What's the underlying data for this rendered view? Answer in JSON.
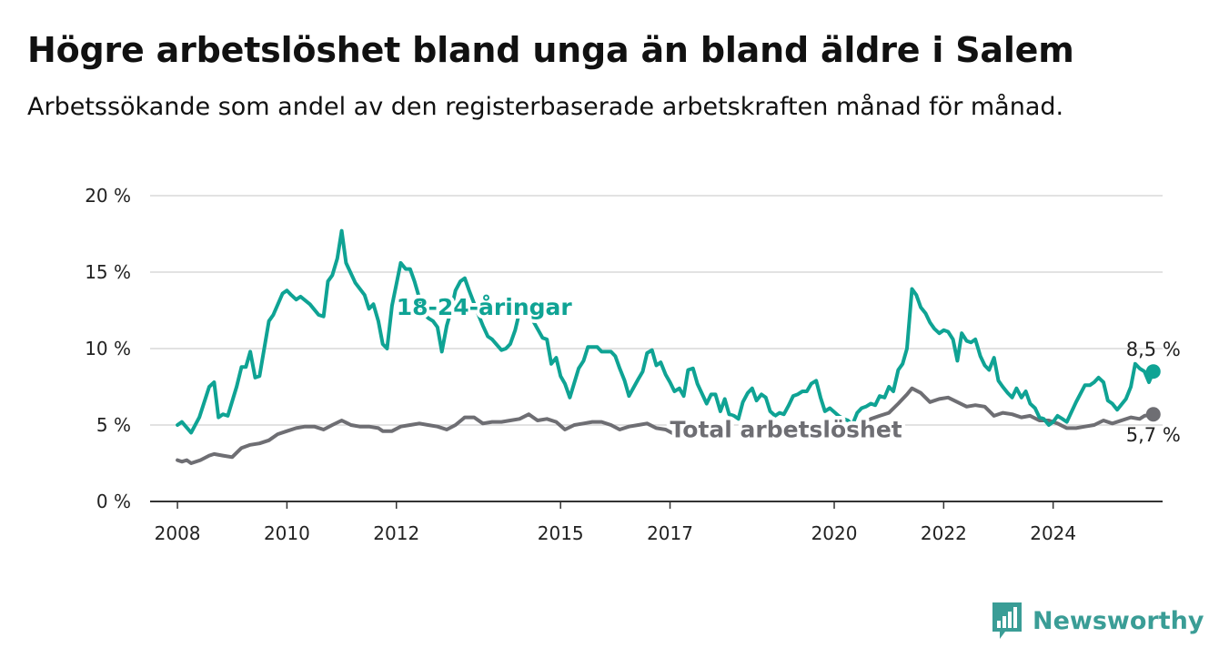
{
  "title": "Högre arbetslöshet bland unga än bland äldre i Salem",
  "subtitle": "Arbetssökande som andel av den registerbaserade arbetskraften månad för månad.",
  "logo": {
    "text": "Newsworthy",
    "icon": "newsworthy-bar-chart-icon",
    "color": "#3a9d96"
  },
  "chart_data": {
    "type": "line",
    "ylim": [
      0,
      20
    ],
    "y_ticks": [
      0,
      5,
      10,
      15,
      20
    ],
    "y_tick_labels": [
      "0 %",
      "5 %",
      "10 %",
      "15 %",
      "20 %"
    ],
    "x_ticks": [
      2008,
      2010,
      2012,
      2015,
      2017,
      2020,
      2022,
      2024
    ],
    "x_tick_labels": [
      "2008",
      "2010",
      "2012",
      "2015",
      "2017",
      "2020",
      "2022",
      "2024"
    ],
    "grid": true,
    "series": [
      {
        "name": "18-24-åringar",
        "color": "#0fa394",
        "end_label": "8,5 %",
        "points": [
          [
            2008.0,
            5.0
          ],
          [
            2008.08,
            5.2
          ],
          [
            2008.25,
            4.5
          ],
          [
            2008.4,
            5.5
          ],
          [
            2008.58,
            7.5
          ],
          [
            2008.67,
            7.8
          ],
          [
            2008.75,
            5.5
          ],
          [
            2008.83,
            5.7
          ],
          [
            2008.92,
            5.6
          ],
          [
            2009.08,
            7.5
          ],
          [
            2009.17,
            8.8
          ],
          [
            2009.25,
            8.8
          ],
          [
            2009.33,
            9.8
          ],
          [
            2009.42,
            8.1
          ],
          [
            2009.5,
            8.2
          ],
          [
            2009.67,
            11.8
          ],
          [
            2009.75,
            12.2
          ],
          [
            2009.92,
            13.6
          ],
          [
            2010.0,
            13.8
          ],
          [
            2010.08,
            13.5
          ],
          [
            2010.17,
            13.2
          ],
          [
            2010.25,
            13.4
          ],
          [
            2010.42,
            12.9
          ],
          [
            2010.58,
            12.2
          ],
          [
            2010.67,
            12.1
          ],
          [
            2010.75,
            14.4
          ],
          [
            2010.83,
            14.8
          ],
          [
            2010.92,
            15.9
          ],
          [
            2011.0,
            17.7
          ],
          [
            2011.08,
            15.6
          ],
          [
            2011.25,
            14.3
          ],
          [
            2011.42,
            13.5
          ],
          [
            2011.5,
            12.6
          ],
          [
            2011.58,
            12.9
          ],
          [
            2011.67,
            11.8
          ],
          [
            2011.75,
            10.3
          ],
          [
            2011.83,
            10.0
          ],
          [
            2011.92,
            12.8
          ],
          [
            2012.08,
            15.6
          ],
          [
            2012.17,
            15.2
          ],
          [
            2012.25,
            15.2
          ],
          [
            2012.33,
            14.4
          ],
          [
            2012.42,
            13.3
          ],
          [
            2012.5,
            12.3
          ],
          [
            2012.58,
            12.0
          ],
          [
            2012.67,
            11.8
          ],
          [
            2012.75,
            11.4
          ],
          [
            2012.83,
            9.8
          ],
          [
            2012.92,
            11.5
          ],
          [
            2013.0,
            12.5
          ],
          [
            2013.08,
            13.8
          ],
          [
            2013.17,
            14.4
          ],
          [
            2013.25,
            14.6
          ],
          [
            2013.33,
            13.8
          ],
          [
            2013.5,
            12.2
          ],
          [
            2013.58,
            11.5
          ],
          [
            2013.67,
            10.8
          ],
          [
            2013.75,
            10.6
          ],
          [
            2013.92,
            9.9
          ],
          [
            2014.0,
            10.0
          ],
          [
            2014.08,
            10.3
          ],
          [
            2014.17,
            11.2
          ],
          [
            2014.25,
            12.4
          ],
          [
            2014.33,
            12.8
          ],
          [
            2014.5,
            11.8
          ],
          [
            2014.67,
            10.7
          ],
          [
            2014.75,
            10.6
          ],
          [
            2014.83,
            9.0
          ],
          [
            2014.92,
            9.4
          ],
          [
            2015.0,
            8.2
          ],
          [
            2015.08,
            7.7
          ],
          [
            2015.17,
            6.8
          ],
          [
            2015.33,
            8.7
          ],
          [
            2015.42,
            9.2
          ],
          [
            2015.5,
            10.1
          ],
          [
            2015.67,
            10.1
          ],
          [
            2015.75,
            9.8
          ],
          [
            2015.92,
            9.8
          ],
          [
            2016.0,
            9.5
          ],
          [
            2016.08,
            8.7
          ],
          [
            2016.17,
            7.9
          ],
          [
            2016.25,
            6.9
          ],
          [
            2016.42,
            8.0
          ],
          [
            2016.5,
            8.5
          ],
          [
            2016.58,
            9.7
          ],
          [
            2016.67,
            9.9
          ],
          [
            2016.75,
            8.9
          ],
          [
            2016.83,
            9.1
          ],
          [
            2016.92,
            8.3
          ],
          [
            2017.0,
            7.8
          ],
          [
            2017.08,
            7.2
          ],
          [
            2017.17,
            7.4
          ],
          [
            2017.25,
            6.9
          ],
          [
            2017.33,
            8.6
          ],
          [
            2017.42,
            8.7
          ],
          [
            2017.5,
            7.7
          ],
          [
            2017.67,
            6.4
          ],
          [
            2017.75,
            7.0
          ],
          [
            2017.83,
            7.0
          ],
          [
            2017.92,
            5.9
          ],
          [
            2018.0,
            6.7
          ],
          [
            2018.08,
            5.7
          ],
          [
            2018.17,
            5.6
          ],
          [
            2018.25,
            5.4
          ],
          [
            2018.33,
            6.5
          ],
          [
            2018.42,
            7.1
          ],
          [
            2018.5,
            7.4
          ],
          [
            2018.58,
            6.6
          ],
          [
            2018.67,
            7.0
          ],
          [
            2018.75,
            6.8
          ],
          [
            2018.83,
            5.9
          ],
          [
            2018.92,
            5.6
          ],
          [
            2019.0,
            5.8
          ],
          [
            2019.08,
            5.7
          ],
          [
            2019.17,
            6.3
          ],
          [
            2019.25,
            6.9
          ],
          [
            2019.33,
            7.0
          ],
          [
            2019.42,
            7.2
          ],
          [
            2019.5,
            7.2
          ],
          [
            2019.58,
            7.7
          ],
          [
            2019.67,
            7.9
          ],
          [
            2019.75,
            6.8
          ],
          [
            2019.83,
            5.9
          ],
          [
            2019.92,
            6.1
          ],
          [
            2020.08,
            5.6
          ],
          [
            2020.17,
            5.4
          ],
          [
            2020.25,
            5.3
          ],
          [
            2020.33,
            5.0
          ],
          [
            2020.42,
            5.8
          ],
          [
            2020.5,
            6.1
          ],
          [
            2020.58,
            6.2
          ],
          [
            2020.67,
            6.4
          ],
          [
            2020.75,
            6.3
          ],
          [
            2020.83,
            6.9
          ],
          [
            2020.92,
            6.8
          ],
          [
            2021.0,
            7.5
          ],
          [
            2021.08,
            7.2
          ],
          [
            2021.17,
            8.6
          ],
          [
            2021.25,
            9.0
          ],
          [
            2021.33,
            10.0
          ],
          [
            2021.42,
            13.9
          ],
          [
            2021.5,
            13.5
          ],
          [
            2021.58,
            12.7
          ],
          [
            2021.67,
            12.3
          ],
          [
            2021.75,
            11.7
          ],
          [
            2021.83,
            11.3
          ],
          [
            2021.92,
            11.0
          ],
          [
            2022.0,
            11.2
          ],
          [
            2022.08,
            11.1
          ],
          [
            2022.17,
            10.6
          ],
          [
            2022.25,
            9.2
          ],
          [
            2022.33,
            11.0
          ],
          [
            2022.42,
            10.5
          ],
          [
            2022.5,
            10.4
          ],
          [
            2022.58,
            10.6
          ],
          [
            2022.67,
            9.5
          ],
          [
            2022.75,
            8.9
          ],
          [
            2022.83,
            8.6
          ],
          [
            2022.92,
            9.4
          ],
          [
            2023.0,
            7.9
          ],
          [
            2023.08,
            7.5
          ],
          [
            2023.17,
            7.1
          ],
          [
            2023.25,
            6.8
          ],
          [
            2023.33,
            7.4
          ],
          [
            2023.42,
            6.8
          ],
          [
            2023.5,
            7.2
          ],
          [
            2023.58,
            6.4
          ],
          [
            2023.67,
            6.1
          ],
          [
            2023.75,
            5.5
          ],
          [
            2023.83,
            5.4
          ],
          [
            2023.92,
            5.0
          ],
          [
            2024.0,
            5.2
          ],
          [
            2024.08,
            5.6
          ],
          [
            2024.17,
            5.4
          ],
          [
            2024.25,
            5.2
          ],
          [
            2024.42,
            6.5
          ],
          [
            2024.58,
            7.6
          ],
          [
            2024.67,
            7.6
          ],
          [
            2024.75,
            7.8
          ],
          [
            2024.83,
            8.1
          ],
          [
            2024.92,
            7.8
          ],
          [
            2025.0,
            6.6
          ],
          [
            2025.08,
            6.4
          ],
          [
            2025.17,
            6.0
          ],
          [
            2025.33,
            6.7
          ],
          [
            2025.42,
            7.5
          ],
          [
            2025.5,
            9.0
          ],
          [
            2025.58,
            8.7
          ],
          [
            2025.67,
            8.5
          ],
          [
            2025.75,
            7.8
          ],
          [
            2025.83,
            8.5
          ]
        ]
      },
      {
        "name": "Total arbetslöshet",
        "color": "#6e6e73",
        "end_label": "5,7 %",
        "points": [
          [
            2008.0,
            2.7
          ],
          [
            2008.08,
            2.6
          ],
          [
            2008.17,
            2.7
          ],
          [
            2008.25,
            2.5
          ],
          [
            2008.42,
            2.7
          ],
          [
            2008.58,
            3.0
          ],
          [
            2008.67,
            3.1
          ],
          [
            2008.83,
            3.0
          ],
          [
            2009.0,
            2.9
          ],
          [
            2009.17,
            3.5
          ],
          [
            2009.33,
            3.7
          ],
          [
            2009.5,
            3.8
          ],
          [
            2009.67,
            4.0
          ],
          [
            2009.83,
            4.4
          ],
          [
            2010.0,
            4.6
          ],
          [
            2010.17,
            4.8
          ],
          [
            2010.33,
            4.9
          ],
          [
            2010.5,
            4.9
          ],
          [
            2010.67,
            4.7
          ],
          [
            2010.83,
            5.0
          ],
          [
            2011.0,
            5.3
          ],
          [
            2011.17,
            5.0
          ],
          [
            2011.33,
            4.9
          ],
          [
            2011.5,
            4.9
          ],
          [
            2011.67,
            4.8
          ],
          [
            2011.75,
            4.6
          ],
          [
            2011.92,
            4.6
          ],
          [
            2012.08,
            4.9
          ],
          [
            2012.25,
            5.0
          ],
          [
            2012.42,
            5.1
          ],
          [
            2012.58,
            5.0
          ],
          [
            2012.75,
            4.9
          ],
          [
            2012.92,
            4.7
          ],
          [
            2013.08,
            5.0
          ],
          [
            2013.25,
            5.5
          ],
          [
            2013.42,
            5.5
          ],
          [
            2013.58,
            5.1
          ],
          [
            2013.75,
            5.2
          ],
          [
            2013.92,
            5.2
          ],
          [
            2014.08,
            5.3
          ],
          [
            2014.25,
            5.4
          ],
          [
            2014.42,
            5.7
          ],
          [
            2014.58,
            5.3
          ],
          [
            2014.75,
            5.4
          ],
          [
            2014.92,
            5.2
          ],
          [
            2015.08,
            4.7
          ],
          [
            2015.25,
            5.0
          ],
          [
            2015.42,
            5.1
          ],
          [
            2015.58,
            5.2
          ],
          [
            2015.75,
            5.2
          ],
          [
            2015.92,
            5.0
          ],
          [
            2016.08,
            4.7
          ],
          [
            2016.25,
            4.9
          ],
          [
            2016.42,
            5.0
          ],
          [
            2016.58,
            5.1
          ],
          [
            2016.75,
            4.8
          ],
          [
            2016.92,
            4.7
          ],
          [
            2017.08,
            4.4
          ],
          [
            2017.25,
            4.2
          ],
          [
            2017.42,
            4.5
          ],
          [
            2017.58,
            4.5
          ],
          [
            2017.75,
            4.3
          ],
          [
            2017.92,
            4.2
          ]
        ]
      },
      {
        "name": "",
        "color": "#6e6e73",
        "points": [
          [
            2020.33,
            4.7
          ],
          [
            2020.5,
            5.0
          ],
          [
            2020.67,
            5.4
          ],
          [
            2020.83,
            5.6
          ],
          [
            2021.0,
            5.8
          ],
          [
            2021.17,
            6.4
          ],
          [
            2021.33,
            7.0
          ],
          [
            2021.42,
            7.4
          ],
          [
            2021.58,
            7.1
          ],
          [
            2021.75,
            6.5
          ],
          [
            2021.92,
            6.7
          ],
          [
            2022.08,
            6.8
          ],
          [
            2022.25,
            6.5
          ],
          [
            2022.42,
            6.2
          ],
          [
            2022.58,
            6.3
          ],
          [
            2022.75,
            6.2
          ],
          [
            2022.92,
            5.6
          ],
          [
            2023.08,
            5.8
          ],
          [
            2023.25,
            5.7
          ],
          [
            2023.42,
            5.5
          ],
          [
            2023.58,
            5.6
          ],
          [
            2023.75,
            5.3
          ],
          [
            2023.92,
            5.3
          ],
          [
            2024.08,
            5.1
          ],
          [
            2024.25,
            4.8
          ],
          [
            2024.42,
            4.8
          ],
          [
            2024.58,
            4.9
          ],
          [
            2024.75,
            5.0
          ],
          [
            2024.92,
            5.3
          ],
          [
            2025.08,
            5.1
          ],
          [
            2025.42,
            5.5
          ],
          [
            2025.58,
            5.4
          ],
          [
            2025.67,
            5.6
          ],
          [
            2025.83,
            5.7
          ]
        ]
      }
    ]
  }
}
